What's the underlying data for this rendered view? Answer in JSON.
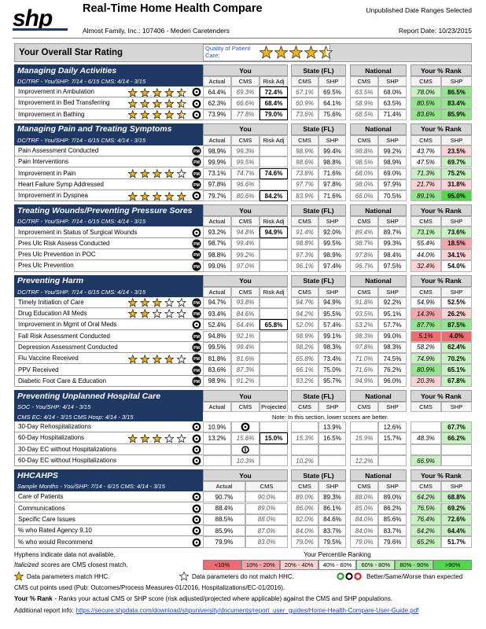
{
  "header": {
    "logo": "shp",
    "title": "Real-Time Home Health Compare",
    "subtitle": "Almost Family, Inc.: 107406 - Mederi Caretenders",
    "status": "Unpublished Date Ranges Selected",
    "report_date": "Report Date: 10/23/2015"
  },
  "overall": {
    "title": "Your Overall Star Rating",
    "label": "Quality of Patient Care:",
    "stars": 4.5
  },
  "sections": [
    {
      "title": "Managing Daily Activities",
      "subtitle": "DC/TRF - You/SHP: 7/14 - 6/15 CMS: 4/14 - 3/15",
      "groups": [
        "You",
        "State (FL)",
        "National",
        "Your % Rank"
      ],
      "columns": [
        "Actual",
        "CMS",
        "Risk Adj",
        "CMS",
        "SHP",
        "CMS",
        "SHP",
        "CMS",
        "SHP"
      ],
      "rows": [
        {
          "label": "Improvement in Ambulation",
          "stars": 4.5,
          "cells": [
            "64.4%",
            "69.3%",
            "72.4%",
            "67.1%",
            "69.5%",
            "63.5%",
            "68.0%",
            "78.0%",
            "86.5%"
          ]
        },
        {
          "label": "Improvement in Bed Transferring",
          "stars": 4.5,
          "cells": [
            "62.3%",
            "66.6%",
            "68.4%",
            "60.9%",
            "64.1%",
            "58.9%",
            "63.5%",
            "80.5%",
            "83.4%"
          ]
        },
        {
          "label": "Improvement in Bathing",
          "stars": 4.5,
          "cells": [
            "73.9%",
            "77.8%",
            "79.0%",
            "73.6%",
            "75.6%",
            "68.5%",
            "71.4%",
            "83.6%",
            "85.9%"
          ]
        }
      ]
    },
    {
      "title": "Managing Pain and Treating Symptoms",
      "subtitle": "DC/TRF - You/SHP: 7/14 - 6/15 CMS: 4/14 - 3/15",
      "groups": [
        "You",
        "State (FL)",
        "National",
        "Your % Rank"
      ],
      "columns": [
        "Actual",
        "CMS",
        "Risk Adj",
        "CMS",
        "SHP",
        "CMS",
        "SHP",
        "CMS",
        "SHP"
      ],
      "rows": [
        {
          "label": "Pain Assessment Conducted",
          "badge": "PM",
          "cells": [
            "98.9%",
            "99.3%",
            null,
            "98.9%",
            "99.4%",
            "98.8%",
            "99.2%",
            "43.7%",
            "23.5%"
          ]
        },
        {
          "label": "Pain Interventions",
          "badge": "PM",
          "cells": [
            "99.9%",
            "99.5%",
            null,
            "98.6%",
            "98.8%",
            "98.5%",
            "98.9%",
            "47.5%",
            "69.7%"
          ]
        },
        {
          "label": "Improvement in Pain",
          "stars": 4,
          "badge": "PM",
          "cells": [
            "73.1%",
            "74.7%",
            "74.6%",
            "73.8%",
            "71.6%",
            "68.0%",
            "69.0%",
            "71.3%",
            "75.2%"
          ]
        },
        {
          "label": "Heart Failure Symp Addressed",
          "badge": "PM",
          "cells": [
            "97.8%",
            "96.6%",
            null,
            "97.7%",
            "97.8%",
            "98.0%",
            "97.9%",
            "21.7%",
            "31.8%"
          ]
        },
        {
          "label": "Improvement in Dyspnea",
          "stars": 5,
          "cells": [
            "79.7%",
            "80.6%",
            "84.2%",
            "83.9%",
            "71.6%",
            "66.0%",
            "70.5%",
            "89.1%",
            "95.0%"
          ]
        }
      ]
    },
    {
      "title": "Treating Wounds/Preventing Pressure Sores",
      "subtitle": "DC/TRF - You/SHP: 7/14 - 6/15 CMS: 4/14 - 3/15",
      "groups": [
        "You",
        "State (FL)",
        "National",
        "Your % Rank"
      ],
      "columns": [
        "Actual",
        "CMS",
        "Risk Adj",
        "CMS",
        "SHP",
        "CMS",
        "SHP",
        "CMS",
        "SHP"
      ],
      "rows": [
        {
          "label": "Improvement in Status of Surgical Wounds",
          "cells": [
            "93.2%",
            "94.8%",
            "94.9%",
            "91.4%",
            "92.0%",
            "89.4%",
            "89.7%",
            "73.1%",
            "73.6%"
          ]
        },
        {
          "label": "Pres Ulc Risk Assess Conducted",
          "badge": "PM",
          "cells": [
            "98.7%",
            "99.4%",
            null,
            "98.8%",
            "99.5%",
            "98.7%",
            "99.3%",
            "55.4%",
            "18.5%"
          ]
        },
        {
          "label": "Pres Ulc Prevention in POC",
          "badge": "PM",
          "cells": [
            "98.8%",
            "99.2%",
            null,
            "97.3%",
            "98.9%",
            "97.8%",
            "98.4%",
            "44.0%",
            "34.1%"
          ]
        },
        {
          "label": "Pres Ulc Prevention",
          "badge": "PM",
          "cells": [
            "99.0%",
            "97.0%",
            null,
            "96.1%",
            "97.4%",
            "96.7%",
            "97.5%",
            "32.4%",
            "54.0%"
          ]
        }
      ]
    },
    {
      "title": "Preventing Harm",
      "subtitle": "DC/TRF - You/SHP: 7/14 - 6/15 CMS: 4/14 - 3/15",
      "groups": [
        "You",
        "State (FL)",
        "National",
        "Your % Rank"
      ],
      "columns": [
        "Actual",
        "CMS",
        "Risk Adj",
        "CMS",
        "SHP",
        "CMS",
        "SHP",
        "CMS",
        "SHP"
      ],
      "rows": [
        {
          "label": "Timely Initiation of Care",
          "stars": 3,
          "badge": "PM",
          "cells": [
            "94.7%",
            "93.8%",
            null,
            "94.7%",
            "94.9%",
            "91.8%",
            "92.2%",
            "54.9%",
            "52.5%"
          ]
        },
        {
          "label": "Drug Education All Meds",
          "stars": 2,
          "badge": "PM",
          "cells": [
            "93.4%",
            "84.6%",
            null,
            "94.2%",
            "95.5%",
            "93.5%",
            "95.1%",
            "14.3%",
            "26.2%"
          ]
        },
        {
          "label": "Improvement in Mgmt of Oral Meds",
          "cells": [
            "52.4%",
            "64.4%",
            "65.8%",
            "52.0%",
            "57.4%",
            "53.2%",
            "57.7%",
            "87.7%",
            "87.5%"
          ]
        },
        {
          "label": "Fall Risk Assessment Conducted",
          "badge": "PM",
          "cells": [
            "94.8%",
            "92.1%",
            null,
            "98.9%",
            "99.1%",
            "98.3%",
            "99.0%",
            "5.1%",
            "4.0%"
          ]
        },
        {
          "label": "Depression Assessment Conducted",
          "badge": "PM",
          "cells": [
            "99.5%",
            "99.4%",
            null,
            "98.2%",
            "98.3%",
            "97.8%",
            "98.3%",
            "58.2%",
            "62.4%"
          ]
        },
        {
          "label": "Flu Vaccine Received",
          "stars": 4,
          "badge": "PM",
          "cells": [
            "81.8%",
            "81.6%",
            null,
            "65.8%",
            "73.4%",
            "71.0%",
            "74.5%",
            "74.9%",
            "70.2%"
          ]
        },
        {
          "label": "PPV Received",
          "badge": "PM",
          "cells": [
            "83.6%",
            "87.3%",
            null,
            "66.1%",
            "75.0%",
            "71.6%",
            "76.2%",
            "80.9%",
            "65.1%"
          ]
        },
        {
          "label": "Diabetic Foot Care & Education",
          "badge": "PM",
          "cells": [
            "98.9%",
            "91.2%",
            null,
            "93.2%",
            "95.7%",
            "94.9%",
            "96.0%",
            "20.3%",
            "67.8%"
          ]
        }
      ]
    },
    {
      "title": "Preventing Unplanned Hospital Care",
      "subtitle": "SOC - You/SHP: 4/14 - 3/15",
      "subtitle2": "CMS EC: 4/14 - 3/15 CMS Hosp: 4/14 - 3/15",
      "note": "Note: In this section, lower scores are better.",
      "groups": [
        "You",
        "State (FL)",
        "National",
        "Your % Rank"
      ],
      "columns": [
        "Actual",
        "CMS",
        "Projected",
        "CMS",
        "SHP",
        "CMS",
        "SHP",
        "CMS",
        "SHP"
      ],
      "rows": [
        {
          "label": "30-Day Rehospitalizations",
          "cells": [
            "10.9%",
            null,
            null,
            null,
            "13.9%",
            null,
            "12.6%",
            null,
            "67.7%"
          ]
        },
        {
          "label": "60-Day Hospitalizations",
          "stars": 3,
          "cells": [
            "13.2%",
            "15.6%",
            "15.0%",
            "15.3%",
            "16.5%",
            "15.9%",
            "15.7%",
            "48.3%",
            "66.2%"
          ]
        },
        {
          "label": "30-Day EC without Hospitalizations",
          "cells": [
            null,
            null,
            null,
            null,
            null,
            null,
            null,
            null,
            null
          ]
        },
        {
          "label": "60-Day EC without Hospitalizations",
          "cells": [
            null,
            "10.3%",
            null,
            "10.2%",
            null,
            "12.2%",
            null,
            "66.9%",
            null
          ]
        }
      ]
    },
    {
      "title": "HHCAHPS",
      "subtitle": "Sample Months - You/SHP: 7/14 - 6/15 CMS: 4/14 - 3/15",
      "groups": [
        "You",
        "State (FL)",
        "National",
        "Your % Rank"
      ],
      "columns": [
        "Actual",
        "CMS",
        "CMS",
        "SHP",
        "CMS",
        "SHP",
        "CMS",
        "SHP"
      ],
      "rows": [
        {
          "label": "Care of Patients",
          "cells": [
            "90.7%",
            "90.0%",
            "89.0%",
            "89.3%",
            "88.0%",
            "89.0%",
            "64.2%",
            "68.8%"
          ]
        },
        {
          "label": "Communications",
          "cells": [
            "88.4%",
            "89.0%",
            "86.0%",
            "86.1%",
            "85.0%",
            "86.2%",
            "76.5%",
            "69.2%"
          ]
        },
        {
          "label": "Specific Care Issues",
          "cells": [
            "88.5%",
            "88.0%",
            "82.0%",
            "84.6%",
            "84.0%",
            "85.6%",
            "76.4%",
            "72.6%"
          ]
        },
        {
          "label": "% who Rated Agency 9,10",
          "cells": [
            "85.9%",
            "87.0%",
            "84.0%",
            "83.7%",
            "84.0%",
            "83.7%",
            "64.2%",
            "64.4%"
          ]
        },
        {
          "label": "% who would Recommend",
          "cells": [
            "79.9%",
            "83.0%",
            "79.0%",
            "79.5%",
            "79.0%",
            "79.6%",
            "65.2%",
            "51.7%"
          ]
        }
      ]
    }
  ],
  "footer": {
    "hyphens": "Hyphens indicate data not available.",
    "percentile_title": "Your Percentile Ranking",
    "italic_word": "Italicized",
    "italic_rest": "scores are CMS closest match.",
    "legend": [
      {
        "label": "<10%",
        "color": "#ee6b70",
        "max": 10
      },
      {
        "label": "10% - 20%",
        "color": "#f6a5a8",
        "max": 20
      },
      {
        "label": "20% - 40%",
        "color": "#fbd3d4",
        "max": 40
      },
      {
        "label": "40% - 60%",
        "color": "#ffffff",
        "max": 60
      },
      {
        "label": "60% - 80%",
        "color": "#c9f2c2",
        "max": 80
      },
      {
        "label": "80% - 90%",
        "color": "#93e68b",
        "max": 90
      },
      {
        "label": ">90%",
        "color": "#52d94a"
      }
    ],
    "match": "Data parameters match HHC.",
    "nomatch": "Data parameters do not match HHC.",
    "bsw": "Better/Same/Worse than expected",
    "cut_points": "CMS cut points used (Pub: Outcomes/Process Measures-01/2016, Hospitalizations/EC-01/2016).",
    "rank_term": "Your % Rank",
    "rank_desc": "- Ranks your actual CMS or SHP score (risk adjusted/projected where applicable) against the CMS and SHP populations.",
    "info_label": "Additional report info:",
    "info_url": "https://secure.shpdata.com/download/shpuniversity/documents/report_user_guides/Home-Health-Compare-User-Guide.pdf"
  }
}
